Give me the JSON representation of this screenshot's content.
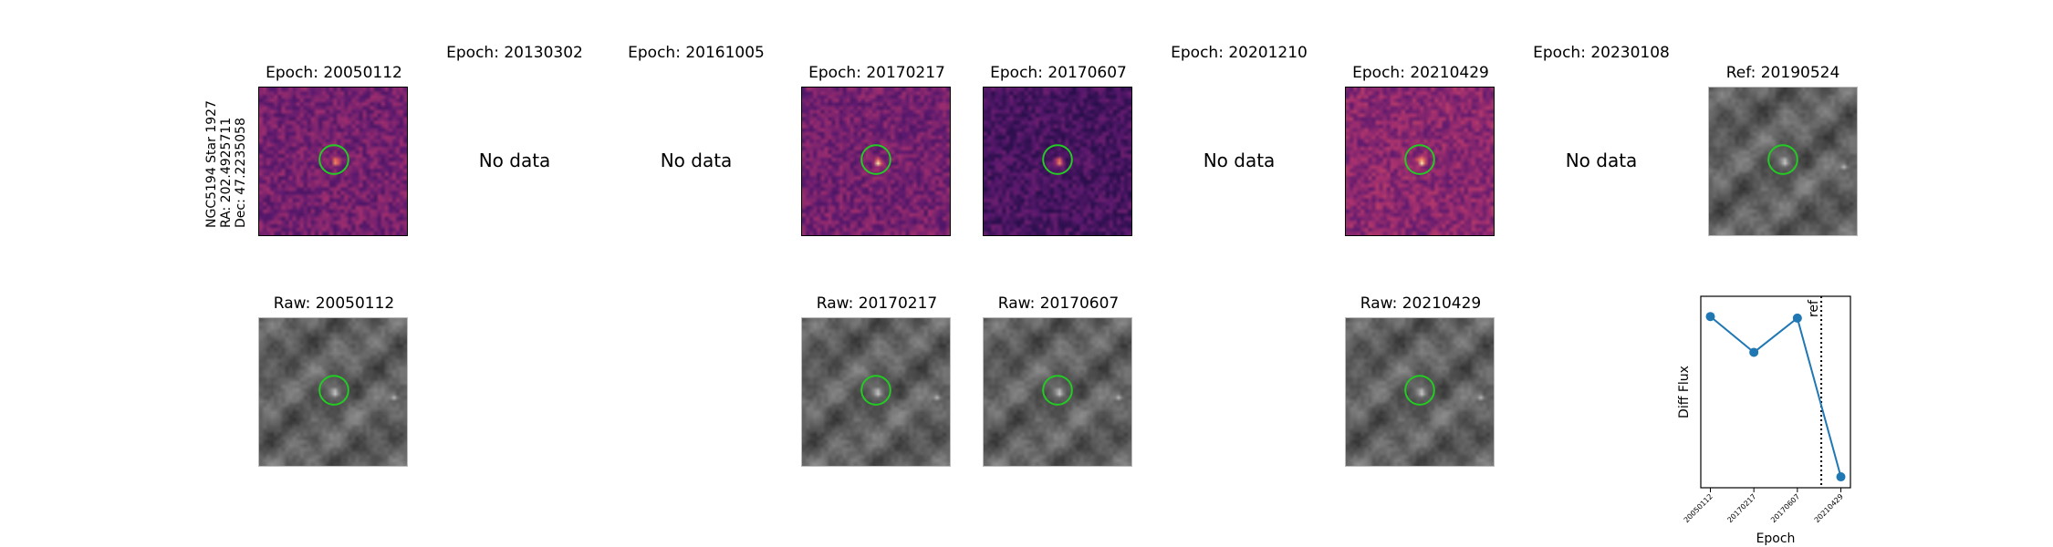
{
  "star_label": [
    "NGC5194 Star 1927",
    "RA: 202.4925711",
    "Dec: 47.2235058"
  ],
  "top_row": [
    {
      "title": "Epoch: 20050112",
      "has_data": true
    },
    {
      "title": "Epoch: 20130302",
      "has_data": false,
      "text": "No data"
    },
    {
      "title": "Epoch: 20161005",
      "has_data": false,
      "text": "No data"
    },
    {
      "title": "Epoch: 20170217",
      "has_data": true
    },
    {
      "title": "Epoch: 20170607",
      "has_data": true
    },
    {
      "title": "Epoch: 20201210",
      "has_data": false,
      "text": "No data"
    },
    {
      "title": "Epoch: 20210429",
      "has_data": true
    },
    {
      "title": "Epoch: 20230108",
      "has_data": false,
      "text": "No data"
    },
    {
      "title": "Ref: 20190524",
      "has_data": true
    }
  ],
  "bottom_row": [
    {
      "title": "Raw: 20050112"
    },
    {
      "title": "Raw: 20170217"
    },
    {
      "title": "Raw: 20170607"
    },
    {
      "title": "Raw: 20210429"
    }
  ],
  "colors": {
    "circle": "#22cc22",
    "line": "#1f77b4"
  },
  "chart_data": {
    "type": "line",
    "categories": [
      "20050112",
      "20170217",
      "20170607",
      "20210429"
    ],
    "values": [
      0.85,
      0.62,
      0.84,
      -0.18
    ],
    "xlabel": "Epoch",
    "ylabel": "Diff Flux",
    "ylim": [
      -0.25,
      0.98
    ],
    "ref_label": "ref",
    "ref_position": 2.55
  }
}
